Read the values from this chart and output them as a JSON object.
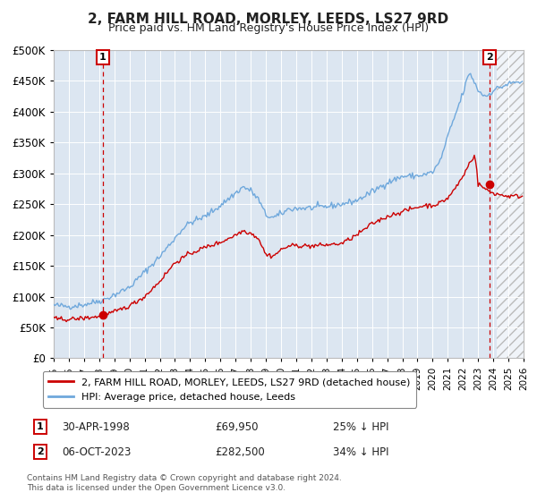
{
  "title": "2, FARM HILL ROAD, MORLEY, LEEDS, LS27 9RD",
  "subtitle": "Price paid vs. HM Land Registry's House Price Index (HPI)",
  "legend_line1": "2, FARM HILL ROAD, MORLEY, LEEDS, LS27 9RD (detached house)",
  "legend_line2": "HPI: Average price, detached house, Leeds",
  "transaction1_date": "30-APR-1998",
  "transaction1_price": 69950,
  "transaction1_price_str": "£69,950",
  "transaction1_hpi": "25% ↓ HPI",
  "transaction1_label": "1",
  "transaction2_date": "06-OCT-2023",
  "transaction2_price": 282500,
  "transaction2_price_str": "£282,500",
  "transaction2_hpi": "34% ↓ HPI",
  "transaction2_label": "2",
  "footnote1": "Contains HM Land Registry data © Crown copyright and database right 2024.",
  "footnote2": "This data is licensed under the Open Government Licence v3.0.",
  "hpi_color": "#6fa8dc",
  "property_color": "#cc0000",
  "bg_color": "#dce6f1",
  "grid_color": "#ffffff",
  "dashed_line_color": "#cc0000",
  "ylim": [
    0,
    500000
  ],
  "xlim_start": 1995.0,
  "xlim_end": 2026.0,
  "future_start": 2024.25,
  "t1_year": 1998,
  "t1_month": 4,
  "t2_year": 2023,
  "t2_month": 10,
  "hpi_key_years": [
    1995.0,
    1996.0,
    1997.0,
    1998.0,
    1998.3,
    1999.0,
    2000.0,
    2001.0,
    2002.0,
    2003.0,
    2003.5,
    2004.0,
    2005.0,
    2006.0,
    2007.0,
    2007.5,
    2008.0,
    2008.5,
    2009.0,
    2009.5,
    2010.0,
    2010.5,
    2011.0,
    2012.0,
    2013.0,
    2014.0,
    2015.0,
    2016.0,
    2017.0,
    2018.0,
    2019.0,
    2019.5,
    2020.0,
    2020.5,
    2021.0,
    2021.5,
    2022.0,
    2022.3,
    2022.5,
    2022.8,
    2023.0,
    2023.2,
    2023.5,
    2023.8,
    2024.0,
    2024.5,
    2025.0,
    2025.5
  ],
  "hpi_key_vals": [
    86000,
    84000,
    87000,
    93000,
    95000,
    103000,
    115000,
    140000,
    165000,
    195000,
    210000,
    220000,
    230000,
    248000,
    268000,
    278000,
    272000,
    258000,
    232000,
    228000,
    234000,
    242000,
    243000,
    244000,
    246000,
    250000,
    256000,
    270000,
    285000,
    295000,
    296000,
    298000,
    302000,
    320000,
    360000,
    395000,
    430000,
    455000,
    462000,
    445000,
    435000,
    430000,
    425000,
    430000,
    435000,
    440000,
    445000,
    448000
  ],
  "prop_key_years": [
    1995.0,
    1996.0,
    1997.0,
    1998.0,
    1998.3,
    1999.0,
    2000.0,
    2001.0,
    2002.0,
    2003.0,
    2004.0,
    2005.0,
    2006.0,
    2007.0,
    2007.5,
    2008.0,
    2008.5,
    2009.0,
    2009.5,
    2010.0,
    2010.5,
    2011.0,
    2012.0,
    2013.0,
    2014.0,
    2015.0,
    2016.0,
    2017.0,
    2018.0,
    2019.0,
    2019.5,
    2020.0,
    2020.5,
    2021.0,
    2021.5,
    2022.0,
    2022.5,
    2022.8,
    2023.0,
    2023.2,
    2023.5,
    2023.8,
    2024.0,
    2024.5,
    2025.0
  ],
  "prop_key_vals": [
    64000,
    63000,
    65000,
    68000,
    69950,
    75000,
    85000,
    100000,
    125000,
    155000,
    170000,
    180000,
    188000,
    200000,
    207000,
    203000,
    195000,
    168000,
    166000,
    176000,
    182000,
    183000,
    182000,
    184000,
    186000,
    200000,
    218000,
    230000,
    238000,
    245000,
    248000,
    248000,
    252000,
    260000,
    276000,
    295000,
    320000,
    330000,
    282500,
    280000,
    274000,
    270000,
    268000,
    265000,
    263000
  ]
}
